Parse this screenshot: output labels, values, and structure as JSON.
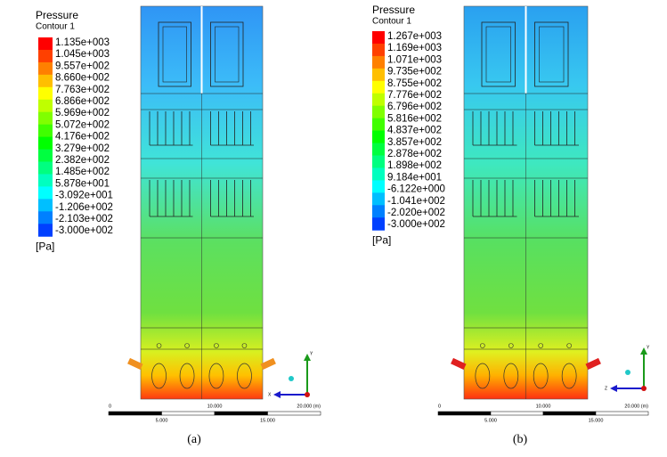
{
  "panels": [
    {
      "legend": {
        "title": "Pressure",
        "subtitle": "Contour 1",
        "labels": [
          "1.135e+003",
          "1.045e+003",
          "9.557e+002",
          "8.660e+002",
          "7.763e+002",
          "6.866e+002",
          "5.969e+002",
          "5.072e+002",
          "4.176e+002",
          "3.279e+002",
          "2.382e+002",
          "1.485e+002",
          "5.878e+001",
          "-3.092e+001",
          "-1.206e+002",
          "-2.103e+002",
          "-3.000e+002"
        ],
        "unit": "[Pa]"
      },
      "scale": {
        "top": [
          "0",
          "10.000",
          "20.000 (m)"
        ],
        "bottom": [
          "5.000",
          "15.000"
        ]
      },
      "triad": {
        "up": "Y",
        "side": "X"
      },
      "caption": "(a)"
    },
    {
      "legend": {
        "title": "Pressure",
        "subtitle": "Contour 1",
        "labels": [
          "1.267e+003",
          "1.169e+003",
          "1.071e+003",
          "9.735e+002",
          "8.755e+002",
          "7.776e+002",
          "6.796e+002",
          "5.816e+002",
          "4.837e+002",
          "3.857e+002",
          "2.878e+002",
          "1.898e+002",
          "9.184e+001",
          "-6.122e+000",
          "-1.041e+002",
          "-2.020e+002",
          "-3.000e+002"
        ],
        "unit": "[Pa]"
      },
      "scale": {
        "top": [
          "0",
          "10.000",
          "20.000 (m)"
        ],
        "bottom": [
          "5.000",
          "15.000"
        ]
      },
      "triad": {
        "up": "Y",
        "side": "Z"
      },
      "caption": "(b)"
    }
  ]
}
